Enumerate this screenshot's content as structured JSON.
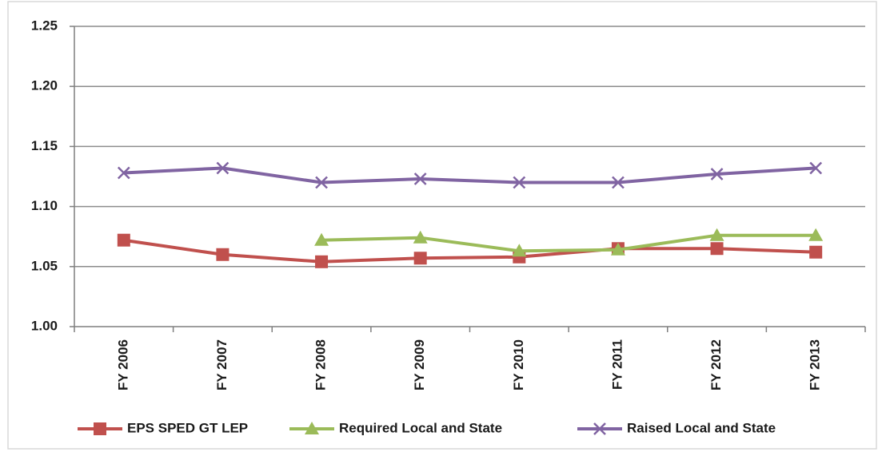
{
  "chart_data": {
    "type": "line",
    "categories": [
      "FY 2006",
      "FY 2007",
      "FY 2008",
      "FY 2009",
      "FY 2010",
      "FY 2011",
      "FY 2012",
      "FY 2013"
    ],
    "series": [
      {
        "name": "EPS SPED GT LEP",
        "color": "#c0504d",
        "marker": "square",
        "values": [
          1.072,
          1.06,
          1.054,
          1.057,
          1.058,
          1.065,
          1.065,
          1.062
        ]
      },
      {
        "name": "Required Local and State",
        "color": "#9bbb59",
        "marker": "triangle",
        "values": [
          null,
          null,
          1.072,
          1.074,
          1.063,
          1.064,
          1.076,
          1.076
        ]
      },
      {
        "name": "Raised Local and State",
        "color": "#8064a2",
        "marker": "x",
        "values": [
          1.128,
          1.132,
          1.12,
          1.123,
          1.12,
          1.12,
          1.127,
          1.132
        ]
      }
    ],
    "ylim": [
      1.0,
      1.25
    ],
    "yticks": [
      {
        "value": 1.0,
        "label": "1.00"
      },
      1.05,
      {
        "value": 1.1,
        "label": "1.10"
      },
      1.15,
      {
        "value": 1.2,
        "label": "1.20"
      },
      1.25
    ],
    "grid": true,
    "legend": "bottom"
  }
}
